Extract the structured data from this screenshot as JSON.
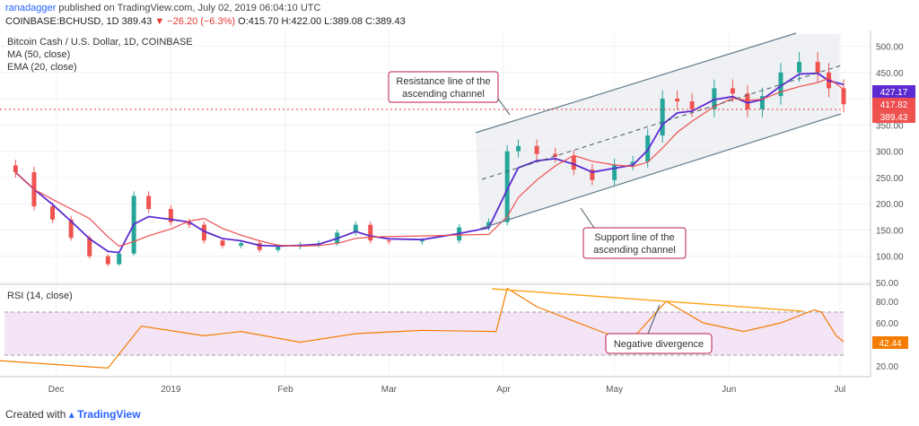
{
  "header": {
    "author": "ranadagger",
    "published": "published on TradingView.com, July 02, 2019 06:04:10 UTC",
    "symbol": "COINBASE:BCHUSD, 1D",
    "last": "389.43",
    "change": "▼ −26.20 (−6.3%)",
    "ohlc": "O:415.70 H:422.00 L:389.08 C:389.43"
  },
  "legend": {
    "title": "Bitcoin Cash / U.S. Dollar, 1D, COINBASE",
    "ma": "MA (50, close)",
    "ema": "EMA (20, close)",
    "rsi": "RSI (14, close)"
  },
  "annotations": {
    "resistance": [
      "Resistance line of the",
      "ascending channel"
    ],
    "support": [
      "Support line of the",
      "ascending channel"
    ],
    "divergence": "Negative divergence"
  },
  "footer": {
    "prefix": "Created with",
    "brand": "TradingView"
  },
  "colors": {
    "up": "#26a69a",
    "down": "#ef5350",
    "ma": "#5b2bd1",
    "ema": "#ef4e4e",
    "channel": "#607d8b",
    "rsi": "#f57c00",
    "divergence": "#ffa726",
    "label_box": "#b71c4c"
  },
  "chart_data": [
    {
      "type": "candlestick",
      "title": "Bitcoin Cash / U.S. Dollar, 1D, COINBASE",
      "x": [
        "2018-11-20",
        "2018-11-25",
        "2018-11-30",
        "2018-12-05",
        "2018-12-10",
        "2018-12-15",
        "2018-12-18",
        "2018-12-22",
        "2018-12-26",
        "2019-01-01",
        "2019-01-06",
        "2019-01-10",
        "2019-01-15",
        "2019-01-20",
        "2019-01-25",
        "2019-01-30",
        "2019-02-05",
        "2019-02-10",
        "2019-02-15",
        "2019-02-20",
        "2019-02-24",
        "2019-03-01",
        "2019-03-10",
        "2019-03-20",
        "2019-03-28",
        "2019-04-02",
        "2019-04-05",
        "2019-04-10",
        "2019-04-15",
        "2019-04-20",
        "2019-04-25",
        "2019-05-01",
        "2019-05-06",
        "2019-05-10",
        "2019-05-14",
        "2019-05-18",
        "2019-05-22",
        "2019-05-28",
        "2019-06-02",
        "2019-06-06",
        "2019-06-10",
        "2019-06-15",
        "2019-06-20",
        "2019-06-25",
        "2019-06-28",
        "2019-07-02"
      ],
      "close": [
        260,
        195,
        170,
        135,
        100,
        85,
        105,
        215,
        190,
        165,
        160,
        130,
        120,
        125,
        112,
        118,
        122,
        125,
        145,
        160,
        130,
        128,
        130,
        155,
        165,
        300,
        310,
        295,
        290,
        265,
        245,
        275,
        280,
        330,
        400,
        395,
        380,
        420,
        410,
        380,
        405,
        450,
        470,
        450,
        420,
        389.43
      ],
      "ma_50_last": 417.82,
      "ema_20_last": 427.17,
      "last_close": 389.43,
      "y_ticks": [
        50,
        100,
        150,
        200,
        250,
        300,
        350,
        400,
        450,
        500
      ],
      "ylim": [
        50,
        530
      ],
      "x_ticks": [
        "Dec",
        "2019",
        "Feb",
        "Mar",
        "Apr",
        "May",
        "Jun",
        "Jul"
      ],
      "price_tags": [
        "427.17",
        "417.82",
        "389.43"
      ]
    },
    {
      "type": "line",
      "title": "RSI (14, close)",
      "x": [
        "2018-11-15",
        "2018-12-15",
        "2018-12-24",
        "2019-01-10",
        "2019-01-20",
        "2019-02-05",
        "2019-02-20",
        "2019-03-10",
        "2019-03-30",
        "2019-04-02",
        "2019-04-10",
        "2019-04-25",
        "2019-05-05",
        "2019-05-15",
        "2019-05-25",
        "2019-06-05",
        "2019-06-15",
        "2019-06-24",
        "2019-06-26",
        "2019-06-30",
        "2019-07-02"
      ],
      "values": [
        25,
        18,
        57,
        48,
        52,
        42,
        50,
        53,
        52,
        92,
        75,
        55,
        42,
        80,
        60,
        52,
        60,
        72,
        70,
        48,
        42.44
      ],
      "bands": [
        30,
        70
      ],
      "y_ticks": [
        20,
        40,
        60,
        80
      ],
      "ylim": [
        10,
        95
      ],
      "last": "42.44"
    }
  ]
}
